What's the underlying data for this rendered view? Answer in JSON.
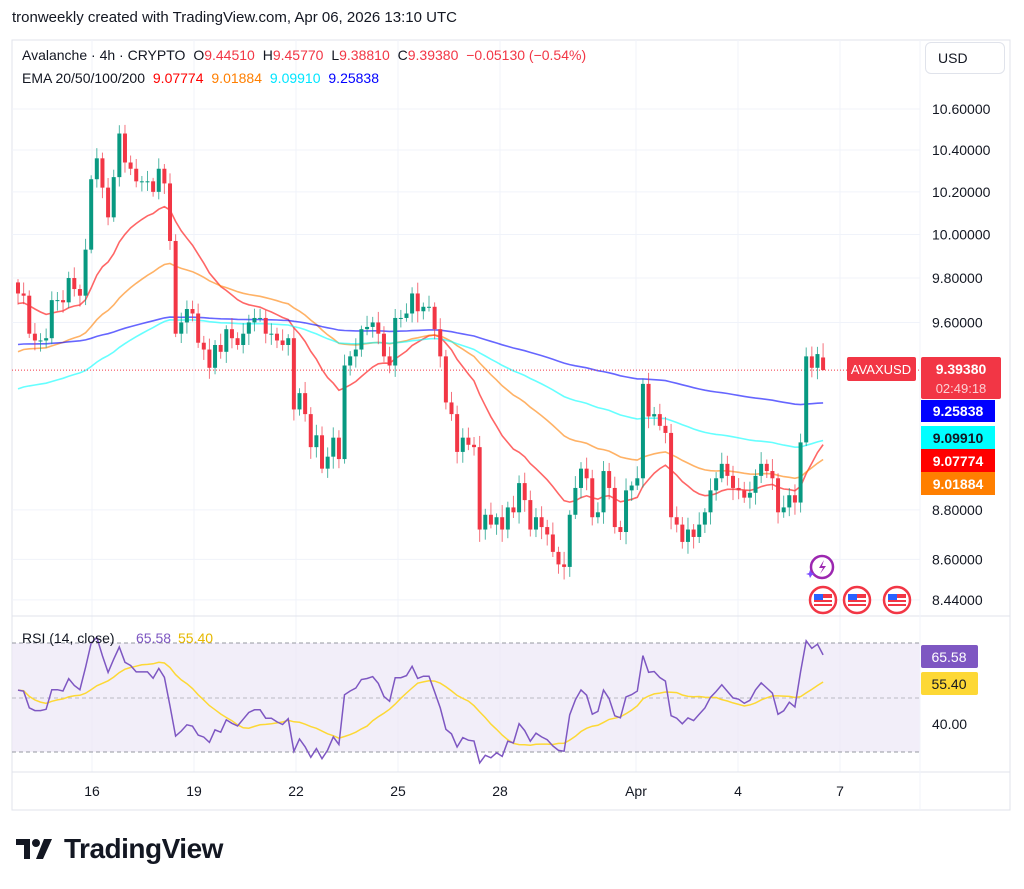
{
  "header": {
    "title": "tronweekly created with TradingView.com, Apr 06, 2026 13:10 UTC"
  },
  "legend": {
    "symbol": "Avalanche · 4h · CRYPTO",
    "open_label": "O",
    "open": "9.44510",
    "high_label": "H",
    "high": "9.45770",
    "low_label": "L",
    "low": "9.38810",
    "close_label": "C",
    "close": "9.39380",
    "change": "−0.05130 (−0.54%)",
    "ema_label": "EMA 20/50/100/200",
    "ema20": "9.07774",
    "ema50": "9.01884",
    "ema100": "9.09910",
    "ema200": "9.25838"
  },
  "currency_button": "USD",
  "price_tags": {
    "symbol": "AVAXUSD",
    "last": "9.39380",
    "countdown": "02:49:18",
    "ema200": "9.25838",
    "ema100": "9.09910",
    "ema20": "9.07774",
    "ema50": "9.01884"
  },
  "rsi": {
    "label": "RSI (14, close)",
    "value": "65.58",
    "ma": "55.40",
    "tick_40": "40.00",
    "upper": 70,
    "lower": 30
  },
  "colors": {
    "up": "#089981",
    "down": "#f23645",
    "ema20": "#ff0000",
    "ema50": "#ff7f00",
    "ema100": "#00ffff",
    "ema200": "#0000ff",
    "rsi": "#7e57c2",
    "rsi_ma": "#fdd835",
    "rsi_band": "#ede7f6"
  },
  "icons": [
    "lightning-event-icon",
    "us-flag-icon",
    "us-flag-icon",
    "us-flag-icon"
  ],
  "brand": "TradingView",
  "chart_data": {
    "type": "candlestick",
    "symbol": "AVAXUSD",
    "interval": "4h",
    "y_scale": "log",
    "ylim": [
      8.36,
      10.74
    ],
    "y_ticks": [
      "10.60000",
      "10.40000",
      "10.20000",
      "10.00000",
      "9.80000",
      "9.60000",
      "8.80000",
      "8.60000",
      "8.44000"
    ],
    "x_ticks": [
      "16",
      "19",
      "22",
      "25",
      "28",
      "Apr",
      "4",
      "7"
    ],
    "grid": true,
    "closes": [
      9.73,
      9.72,
      9.55,
      9.52,
      9.52,
      9.53,
      9.7,
      9.7,
      9.69,
      9.8,
      9.75,
      9.72,
      9.93,
      10.26,
      10.36,
      10.22,
      10.08,
      10.27,
      10.48,
      10.34,
      10.31,
      10.25,
      10.25,
      10.25,
      10.2,
      10.31,
      10.24,
      9.97,
      9.55,
      9.6,
      9.66,
      9.64,
      9.51,
      9.48,
      9.4,
      9.5,
      9.47,
      9.57,
      9.53,
      9.5,
      9.55,
      9.6,
      9.62,
      9.62,
      9.55,
      9.55,
      9.52,
      9.5,
      9.53,
      9.22,
      9.29,
      9.2,
      9.06,
      9.11,
      8.97,
      9.02,
      9.1,
      9.01,
      9.41,
      9.45,
      9.48,
      9.57,
      9.58,
      9.6,
      9.55,
      9.45,
      9.41,
      9.62,
      9.62,
      9.64,
      9.73,
      9.65,
      9.67,
      9.67,
      9.57,
      9.45,
      9.25,
      9.2,
      9.04,
      9.1,
      9.07,
      9.06,
      8.72,
      8.78,
      8.74,
      8.77,
      8.72,
      8.81,
      8.79,
      8.91,
      8.84,
      8.72,
      8.77,
      8.73,
      8.7,
      8.63,
      8.58,
      8.57,
      8.78,
      8.89,
      8.97,
      8.93,
      8.77,
      8.79,
      8.96,
      8.89,
      8.73,
      8.71,
      8.88,
      8.9,
      8.93,
      9.33,
      9.19,
      9.2,
      9.15,
      9.12,
      8.77,
      8.74,
      8.67,
      8.72,
      8.69,
      8.74,
      8.79,
      8.88,
      8.93,
      8.99,
      8.94,
      8.89,
      8.88,
      8.85,
      8.87,
      8.94,
      8.99,
      8.96,
      8.93,
      8.79,
      8.81,
      8.86,
      8.83,
      9.08,
      9.45,
      9.4,
      9.46,
      9.39
    ],
    "last_candle": {
      "open": 9.4451,
      "high": 9.4577,
      "low": 9.3881,
      "close": 9.3938
    },
    "ema_last": {
      "ema20": 9.07774,
      "ema50": 9.01884,
      "ema100": 9.0991,
      "ema200": 9.25838
    },
    "rsi_last": 65.58,
    "rsi_ma_last": 55.4,
    "rsi_ylim": [
      25,
      80
    ]
  }
}
